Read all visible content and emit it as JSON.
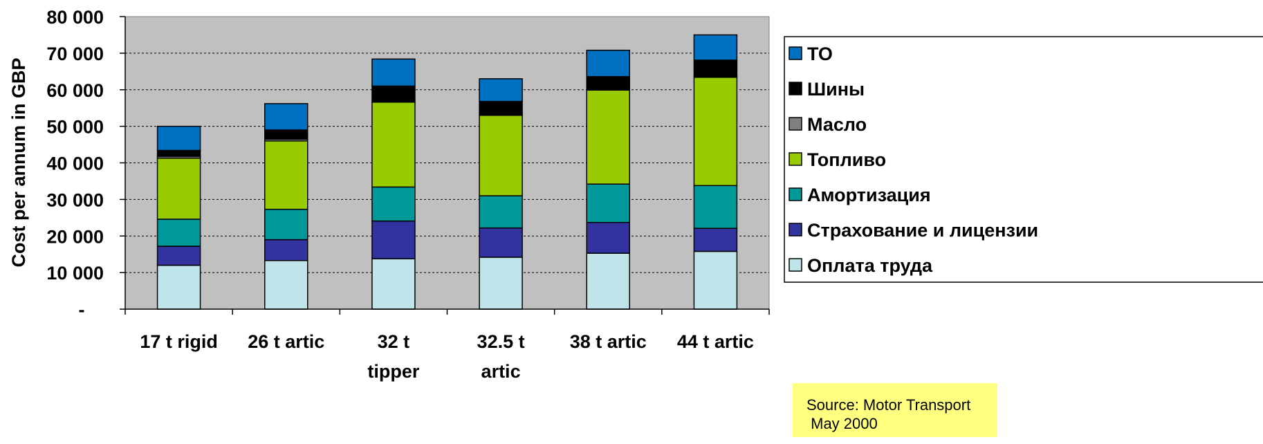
{
  "chart_data": {
    "type": "bar",
    "stacked": true,
    "title": "",
    "xlabel": "",
    "ylabel": "Cost per annum in GBP",
    "ylim": [
      0,
      80000
    ],
    "yticks": [
      0,
      10000,
      20000,
      30000,
      40000,
      50000,
      60000,
      70000,
      80000
    ],
    "ytick_labels": [
      "-",
      "10 000",
      "20 000",
      "30 000",
      "40 000",
      "50 000",
      "60 000",
      "70 000",
      "80 000"
    ],
    "grid": true,
    "legend_position": "right",
    "categories": [
      [
        "17 t rigid"
      ],
      [
        "26 t artic"
      ],
      [
        "32 t",
        "tipper"
      ],
      [
        "32.5 t",
        "artic"
      ],
      [
        "38 t artic"
      ],
      [
        "44 t artic"
      ]
    ],
    "series": [
      {
        "name": "Оплата труда",
        "color": "#bfe4ea",
        "values": [
          12000,
          13300,
          13800,
          14200,
          15300,
          15800
        ]
      },
      {
        "name": "Страхование и лицензии",
        "color": "#3333a0",
        "values": [
          5200,
          5700,
          10300,
          8000,
          8400,
          6300
        ]
      },
      {
        "name": "Амортизация",
        "color": "#009999",
        "values": [
          7400,
          8300,
          9300,
          8800,
          10500,
          11700
        ]
      },
      {
        "name": "Топливо",
        "color": "#99cc00",
        "values": [
          16700,
          18700,
          23200,
          22000,
          25700,
          29600
        ]
      },
      {
        "name": "Масло",
        "color": "#808080",
        "values": [
          500,
          500,
          300,
          300,
          300,
          300
        ]
      },
      {
        "name": "Шины",
        "color": "#000000",
        "values": [
          1600,
          2500,
          4100,
          3500,
          3400,
          4400
        ]
      },
      {
        "name": "ТО",
        "color": "#0070c0",
        "values": [
          6600,
          7200,
          7400,
          6200,
          7200,
          6900
        ]
      }
    ]
  },
  "source": {
    "lines": [
      "Source: Motor Transport",
      " May 2000"
    ]
  }
}
